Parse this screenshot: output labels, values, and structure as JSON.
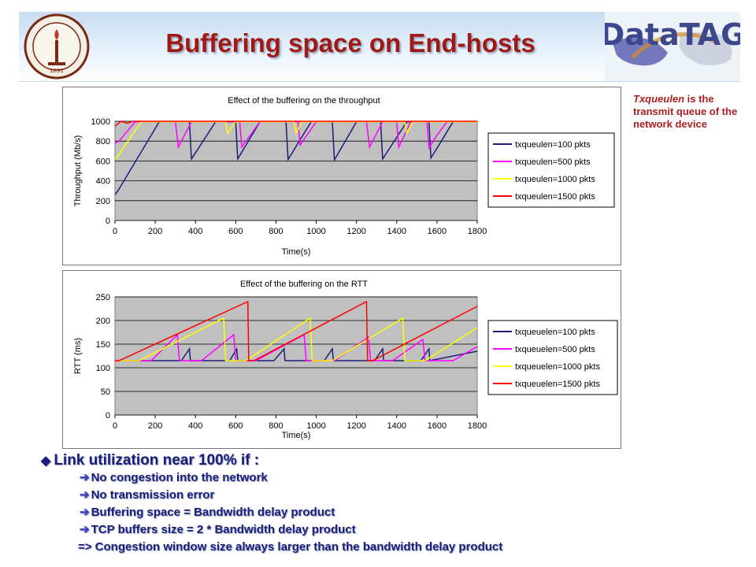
{
  "title": "Buffering space on End-hosts",
  "logos": {
    "left": "caltech-seal",
    "left_text": "CALIFORNIA INSTITUTE OF TECHNOLOGY",
    "left_year": "1891",
    "right_text": "DataTAG"
  },
  "note": {
    "keyword": "Txqueulen",
    "text": " is the transmit queue of the network device"
  },
  "bullets": {
    "main": "Link utilization near 100% if :",
    "subs": [
      "No congestion into the network",
      "No transmission error",
      "Buffering space = Bandwidth delay product",
      "TCP buffers size = 2 * Bandwidth delay product"
    ],
    "last": "=> Congestion window size always larger than the bandwidth delay product"
  },
  "colors": {
    "title": "#9e1a14",
    "bullets": "#1a1d7a",
    "note": "#aa1f1f",
    "plot_bg": "#c0c0c0"
  },
  "chart_data": [
    {
      "type": "line",
      "title": "Effect of the buffering on the throughput",
      "xlabel": "Time(s)",
      "ylabel": "Throughput (Mb/s)",
      "xlim": [
        0,
        1800
      ],
      "ylim": [
        0,
        1000
      ],
      "xticks": [
        0,
        200,
        400,
        600,
        800,
        1000,
        1200,
        1400,
        1600,
        1800
      ],
      "yticks": [
        0,
        200,
        400,
        600,
        800,
        1000
      ],
      "grid": true,
      "legend": "right",
      "series": [
        {
          "name": "txqueulen=100 pkts",
          "color": "#1a1d7a",
          "points": [
            [
              0,
              260
            ],
            [
              15,
              300
            ],
            [
              220,
              995
            ],
            [
              370,
              995
            ],
            [
              380,
              620
            ],
            [
              500,
              995
            ],
            [
              600,
              995
            ],
            [
              610,
              620
            ],
            [
              720,
              995
            ],
            [
              850,
              995
            ],
            [
              860,
              615
            ],
            [
              975,
              995
            ],
            [
              1080,
              995
            ],
            [
              1090,
              610
            ],
            [
              1200,
              995
            ],
            [
              1320,
              995
            ],
            [
              1330,
              620
            ],
            [
              1450,
              995
            ],
            [
              1560,
              995
            ],
            [
              1570,
              630
            ],
            [
              1610,
              760
            ],
            [
              1680,
              995
            ],
            [
              1800,
              995
            ]
          ]
        },
        {
          "name": "txqueulen=500 pkts",
          "color": "#ff00ff",
          "points": [
            [
              0,
              780
            ],
            [
              20,
              800
            ],
            [
              100,
              995
            ],
            [
              300,
              995
            ],
            [
              315,
              740
            ],
            [
              380,
              995
            ],
            [
              620,
              995
            ],
            [
              630,
              740
            ],
            [
              720,
              995
            ],
            [
              910,
              995
            ],
            [
              920,
              760
            ],
            [
              1000,
              995
            ],
            [
              1250,
              995
            ],
            [
              1265,
              740
            ],
            [
              1330,
              995
            ],
            [
              1400,
              995
            ],
            [
              1410,
              740
            ],
            [
              1470,
              995
            ],
            [
              1550,
              995
            ],
            [
              1560,
              730
            ],
            [
              1600,
              860
            ],
            [
              1650,
              995
            ],
            [
              1800,
              995
            ]
          ]
        },
        {
          "name": "txqueulen=1000 pkts",
          "color": "#ffff00",
          "points": [
            [
              0,
              620
            ],
            [
              15,
              650
            ],
            [
              130,
              995
            ],
            [
              550,
              995
            ],
            [
              560,
              880
            ],
            [
              600,
              995
            ],
            [
              890,
              995
            ],
            [
              900,
              880
            ],
            [
              930,
              995
            ],
            [
              1440,
              995
            ],
            [
              1450,
              880
            ],
            [
              1480,
              995
            ],
            [
              1800,
              995
            ]
          ]
        },
        {
          "name": "txqueulen=1500 pkts",
          "color": "#ff0000",
          "points": [
            [
              0,
              950
            ],
            [
              30,
              1000
            ],
            [
              60,
              980
            ],
            [
              90,
              1000
            ],
            [
              1800,
              1000
            ]
          ]
        }
      ]
    },
    {
      "type": "line",
      "title": "Effect of the buffering on the RTT",
      "xlabel": "Time(s)",
      "ylabel": "RTT (ms)",
      "xlim": [
        0,
        1800
      ],
      "ylim": [
        0,
        250
      ],
      "xticks": [
        0,
        200,
        400,
        600,
        800,
        1000,
        1200,
        1400,
        1600,
        1800
      ],
      "yticks": [
        0,
        50,
        100,
        150,
        200,
        250
      ],
      "grid": true,
      "legend": "right",
      "series": [
        {
          "name": "txqueuelen=100 pkts",
          "color": "#1a1d7a",
          "points": [
            [
              0,
              115
            ],
            [
              330,
              115
            ],
            [
              370,
              140
            ],
            [
              375,
              115
            ],
            [
              570,
              115
            ],
            [
              605,
              140
            ],
            [
              610,
              115
            ],
            [
              790,
              115
            ],
            [
              840,
              140
            ],
            [
              845,
              115
            ],
            [
              1040,
              115
            ],
            [
              1080,
              140
            ],
            [
              1085,
              115
            ],
            [
              1290,
              115
            ],
            [
              1330,
              140
            ],
            [
              1335,
              115
            ],
            [
              1520,
              115
            ],
            [
              1560,
              140
            ],
            [
              1565,
              115
            ],
            [
              1800,
              135
            ]
          ]
        },
        {
          "name": "txqueuelen=500 pkts",
          "color": "#ff00ff",
          "points": [
            [
              0,
              115
            ],
            [
              180,
              115
            ],
            [
              310,
              170
            ],
            [
              320,
              115
            ],
            [
              430,
              115
            ],
            [
              590,
              170
            ],
            [
              600,
              115
            ],
            [
              700,
              115
            ],
            [
              940,
              170
            ],
            [
              950,
              115
            ],
            [
              1090,
              115
            ],
            [
              1260,
              165
            ],
            [
              1270,
              115
            ],
            [
              1380,
              115
            ],
            [
              1530,
              160
            ],
            [
              1540,
              115
            ],
            [
              1680,
              115
            ],
            [
              1800,
              145
            ]
          ]
        },
        {
          "name": "txqueuelen=1000 pkts",
          "color": "#ffff00",
          "points": [
            [
              0,
              115
            ],
            [
              120,
              115
            ],
            [
              540,
              205
            ],
            [
              550,
              115
            ],
            [
              650,
              115
            ],
            [
              970,
              205
            ],
            [
              980,
              115
            ],
            [
              1080,
              115
            ],
            [
              1430,
              205
            ],
            [
              1440,
              115
            ],
            [
              1540,
              115
            ],
            [
              1800,
              185
            ]
          ]
        },
        {
          "name": "txqueuelen=1500 pkts",
          "color": "#ff0000",
          "points": [
            [
              0,
              115
            ],
            [
              20,
              115
            ],
            [
              660,
              240
            ],
            [
              665,
              115
            ],
            [
              690,
              115
            ],
            [
              1250,
              240
            ],
            [
              1255,
              115
            ],
            [
              1280,
              115
            ],
            [
              1800,
              230
            ]
          ]
        }
      ]
    }
  ]
}
